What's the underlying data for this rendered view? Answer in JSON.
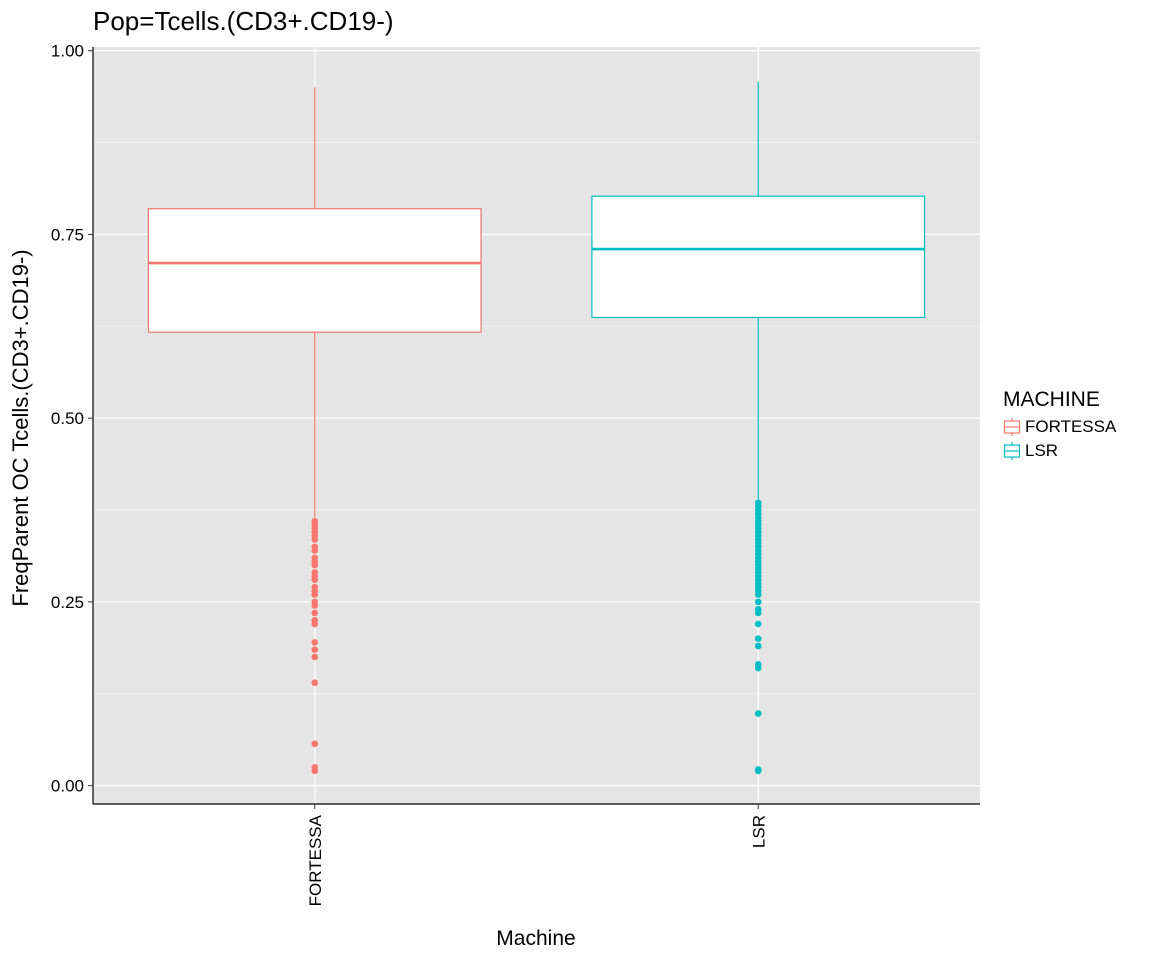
{
  "chart_data": {
    "type": "boxplot",
    "title": "Pop=Tcells.(CD3+.CD19-)",
    "xlabel": "Machine",
    "ylabel": "FreqParent OC  Tcells.(CD3+.CD19-)",
    "ylim": [
      -0.025,
      1.005
    ],
    "y_ticks": [
      "0.00",
      "0.25",
      "0.50",
      "0.75",
      "1.00"
    ],
    "categories": [
      "FORTESSA",
      "LSR"
    ],
    "grid": true,
    "legend": {
      "title": "MACHINE",
      "position": "right"
    },
    "series": [
      {
        "name": "FORTESSA",
        "color": "#F8766D",
        "whisker_low": 0.365,
        "q1": 0.617,
        "median": 0.711,
        "q3": 0.785,
        "whisker_high": 0.95,
        "outliers": [
          0.36,
          0.355,
          0.35,
          0.345,
          0.34,
          0.335,
          0.325,
          0.32,
          0.31,
          0.305,
          0.3,
          0.29,
          0.285,
          0.28,
          0.27,
          0.265,
          0.26,
          0.25,
          0.245,
          0.235,
          0.225,
          0.22,
          0.195,
          0.185,
          0.175,
          0.14,
          0.057,
          0.025,
          0.02
        ]
      },
      {
        "name": "LSR",
        "color": "#00BFC4",
        "whisker_low": 0.39,
        "q1": 0.637,
        "median": 0.73,
        "q3": 0.802,
        "whisker_high": 0.958,
        "outliers": [
          0.385,
          0.38,
          0.375,
          0.37,
          0.365,
          0.36,
          0.355,
          0.35,
          0.345,
          0.34,
          0.335,
          0.33,
          0.325,
          0.32,
          0.315,
          0.31,
          0.305,
          0.3,
          0.295,
          0.29,
          0.285,
          0.28,
          0.275,
          0.27,
          0.265,
          0.26,
          0.25,
          0.24,
          0.235,
          0.22,
          0.2,
          0.19,
          0.165,
          0.16,
          0.098,
          0.022,
          0.02
        ]
      }
    ]
  }
}
